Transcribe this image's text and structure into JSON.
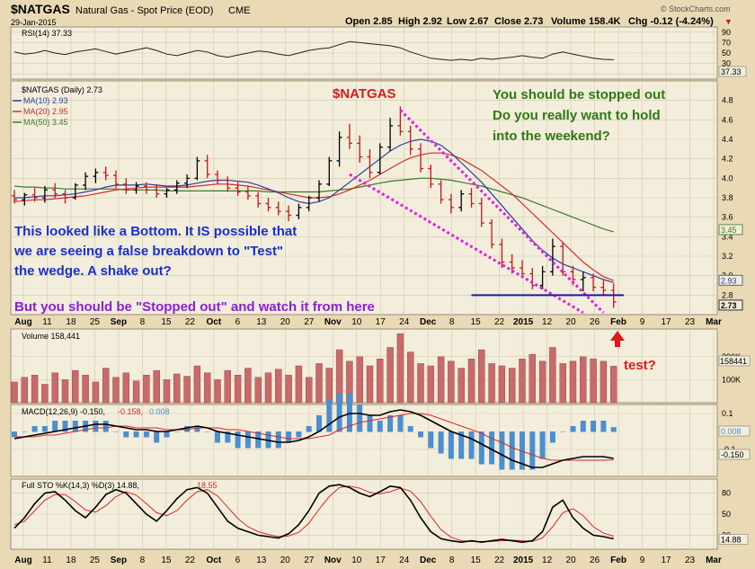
{
  "header": {
    "symbol": "$NATGAS",
    "description": "Natural Gas - Spot Price (EOD)",
    "exchange": "CME",
    "date": "29-Jan-2015",
    "open": "Open 2.85",
    "high": "High 2.92",
    "low": "Low 2.67",
    "close": "Close 2.73",
    "volume": "Volume 158.4K",
    "change": "Chg -0.12 (-4.24%)",
    "change_arrow": "▼",
    "watermark": "© StockCharts.com"
  },
  "legends": {
    "rsi": "RSI(14) 37.33",
    "price_name": "$NATGAS (Daily) 2.73",
    "ma10": "MA(10) 2.93",
    "ma20": "MA(20) 2.95",
    "ma50": "MA(50) 3.45",
    "volume": "Volume 158,441",
    "macd_main": "MACD(12,26,9) -0.150,",
    "macd_signal": "-0.158,",
    "macd_hist": "0.008",
    "sto_main": "Full STO %K(14,3) %D(3) 14.88,",
    "sto_d": "18.55"
  },
  "annotations": {
    "title": "$NATGAS",
    "stopped_1": "You should be stopped out",
    "stopped_2": "Do you really want to hold",
    "stopped_3": "into the weekend?",
    "bottom_1": "This looked like a Bottom.  It IS possible that",
    "bottom_2": "we are seeing a false breakdown to \"Test\"",
    "bottom_3": "the wedge.  A shake out?",
    "watch": "But you should be \"Stopped out\" and watch it from here",
    "test": "test?"
  },
  "colors": {
    "background": "#e9d9b4",
    "panel": "#f3eddc",
    "grid": "#d2c7ad",
    "up_bar": "#000000",
    "down_bar": "#c41818",
    "ma10": "#2b3fa0",
    "ma20": "#d42a2a",
    "ma50": "#3a7a2a",
    "vol_bar": "#c96a6a",
    "macd_hist": "#4b8fcf",
    "wedge": "#e020e0",
    "support": "#1a1aa0",
    "note_blue": "#1a2fc9",
    "note_green": "#2d7a12",
    "note_red": "#e01818",
    "note_purple": "#8a1fd6"
  },
  "chart_data": {
    "type": "candlestick",
    "x_labels": [
      "Aug",
      "11",
      "18",
      "25",
      "Sep",
      "8",
      "15",
      "22",
      "Oct",
      "6",
      "13",
      "20",
      "27",
      "Nov",
      "10",
      "17",
      "24",
      "Dec",
      "8",
      "15",
      "22",
      "2015",
      "12",
      "20",
      "26",
      "Feb",
      "9",
      "17",
      "23",
      "Mar"
    ],
    "panels": {
      "rsi": {
        "ylim": [
          0,
          100
        ],
        "ticks": [
          "90",
          "70",
          "50",
          "30",
          "10"
        ],
        "last": "37.33",
        "values": [
          52,
          48,
          50,
          55,
          50,
          47,
          52,
          55,
          58,
          53,
          48,
          52,
          56,
          60,
          55,
          48,
          45,
          50,
          55,
          52,
          45,
          42,
          46,
          50,
          54,
          52,
          48,
          45,
          50,
          55,
          58,
          60,
          66,
          72,
          70,
          68,
          66,
          64,
          60,
          52,
          46,
          40,
          38,
          36,
          38,
          36,
          40,
          38,
          40,
          42,
          45,
          42,
          40,
          48,
          52,
          48,
          44,
          40,
          38,
          37
        ]
      },
      "price": {
        "ylim": [
          2.6,
          5.0
        ],
        "ticks": [
          "4.8",
          "4.6",
          "4.4",
          "4.2",
          "4.0",
          "3.8",
          "3.6",
          "3.4",
          "3.2",
          "3.0",
          "2.8"
        ],
        "last_labels": [
          "3.45",
          "2.93",
          "2.73"
        ],
        "ohlc": [
          [
            3.82,
            3.88,
            3.74,
            3.78
          ],
          [
            3.78,
            3.85,
            3.72,
            3.83
          ],
          [
            3.83,
            3.9,
            3.76,
            3.8
          ],
          [
            3.8,
            3.92,
            3.75,
            3.88
          ],
          [
            3.88,
            3.95,
            3.8,
            3.84
          ],
          [
            3.84,
            3.88,
            3.74,
            3.8
          ],
          [
            3.8,
            3.95,
            3.78,
            3.93
          ],
          [
            3.93,
            4.06,
            3.88,
            4.02
          ],
          [
            4.02,
            4.1,
            3.95,
            4.06
          ],
          [
            4.06,
            4.12,
            3.98,
            4.03
          ],
          [
            4.03,
            4.08,
            3.9,
            3.94
          ],
          [
            3.94,
            4.0,
            3.84,
            3.88
          ],
          [
            3.88,
            3.96,
            3.84,
            3.92
          ],
          [
            3.92,
            3.96,
            3.84,
            3.88
          ],
          [
            3.88,
            3.94,
            3.8,
            3.84
          ],
          [
            3.84,
            3.9,
            3.8,
            3.88
          ],
          [
            3.88,
            3.98,
            3.84,
            3.95
          ],
          [
            3.95,
            4.04,
            3.9,
            4.0
          ],
          [
            4.0,
            4.22,
            3.98,
            4.18
          ],
          [
            4.18,
            4.24,
            4.0,
            4.04
          ],
          [
            4.04,
            4.08,
            3.94,
            3.98
          ],
          [
            3.98,
            4.02,
            3.86,
            3.9
          ],
          [
            3.9,
            3.96,
            3.82,
            3.86
          ],
          [
            3.86,
            3.92,
            3.78,
            3.82
          ],
          [
            3.82,
            3.86,
            3.7,
            3.74
          ],
          [
            3.74,
            3.8,
            3.66,
            3.7
          ],
          [
            3.7,
            3.76,
            3.62,
            3.66
          ],
          [
            3.66,
            3.72,
            3.56,
            3.62
          ],
          [
            3.62,
            3.74,
            3.58,
            3.7
          ],
          [
            3.7,
            3.82,
            3.66,
            3.8
          ],
          [
            3.8,
            3.98,
            3.76,
            3.94
          ],
          [
            3.94,
            4.22,
            3.92,
            4.18
          ],
          [
            4.18,
            4.48,
            4.12,
            4.42
          ],
          [
            4.42,
            4.56,
            4.3,
            4.36
          ],
          [
            4.36,
            4.44,
            4.16,
            4.22
          ],
          [
            4.22,
            4.3,
            4.0,
            4.06
          ],
          [
            4.06,
            4.36,
            4.04,
            4.32
          ],
          [
            4.32,
            4.62,
            4.28,
            4.54
          ],
          [
            4.54,
            4.74,
            4.44,
            4.48
          ],
          [
            4.48,
            4.54,
            4.24,
            4.3
          ],
          [
            4.3,
            4.36,
            4.06,
            4.1
          ],
          [
            4.1,
            4.14,
            3.9,
            3.94
          ],
          [
            3.94,
            3.98,
            3.74,
            3.78
          ],
          [
            3.78,
            3.84,
            3.64,
            3.7
          ],
          [
            3.7,
            3.88,
            3.66,
            3.84
          ],
          [
            3.84,
            3.9,
            3.7,
            3.74
          ],
          [
            3.74,
            3.8,
            3.5,
            3.54
          ],
          [
            3.54,
            3.58,
            3.28,
            3.32
          ],
          [
            3.32,
            3.38,
            3.08,
            3.14
          ],
          [
            3.14,
            3.22,
            3.02,
            3.08
          ],
          [
            3.08,
            3.16,
            2.98,
            3.02
          ],
          [
            3.02,
            3.08,
            2.86,
            2.9
          ],
          [
            2.9,
            3.1,
            2.86,
            3.04
          ],
          [
            3.04,
            3.38,
            3.0,
            3.3
          ],
          [
            3.3,
            3.34,
            3.0,
            3.04
          ],
          [
            3.04,
            3.1,
            2.9,
            2.96
          ],
          [
            2.96,
            3.04,
            2.84,
            2.98
          ],
          [
            2.98,
            3.02,
            2.84,
            2.88
          ],
          [
            2.88,
            2.96,
            2.8,
            2.85
          ],
          [
            2.85,
            2.92,
            2.67,
            2.73
          ]
        ],
        "ma10": [
          3.8,
          3.8,
          3.81,
          3.82,
          3.82,
          3.83,
          3.84,
          3.86,
          3.88,
          3.91,
          3.93,
          3.93,
          3.93,
          3.94,
          3.93,
          3.92,
          3.92,
          3.93,
          3.95,
          3.97,
          3.98,
          3.98,
          3.97,
          3.96,
          3.93,
          3.89,
          3.85,
          3.8,
          3.76,
          3.74,
          3.76,
          3.8,
          3.88,
          3.96,
          4.04,
          4.12,
          4.2,
          4.28,
          4.34,
          4.38,
          4.4,
          4.38,
          4.34,
          4.26,
          4.16,
          4.06,
          3.96,
          3.84,
          3.72,
          3.6,
          3.48,
          3.36,
          3.26,
          3.18,
          3.12,
          3.08,
          3.04,
          3.0,
          2.96,
          2.93
        ],
        "ma20": [
          3.76,
          3.77,
          3.78,
          3.78,
          3.79,
          3.8,
          3.81,
          3.82,
          3.84,
          3.86,
          3.88,
          3.89,
          3.9,
          3.91,
          3.91,
          3.91,
          3.91,
          3.91,
          3.92,
          3.93,
          3.94,
          3.94,
          3.93,
          3.92,
          3.9,
          3.88,
          3.86,
          3.84,
          3.82,
          3.8,
          3.8,
          3.81,
          3.84,
          3.88,
          3.93,
          3.98,
          4.04,
          4.1,
          4.16,
          4.21,
          4.24,
          4.26,
          4.26,
          4.24,
          4.2,
          4.14,
          4.08,
          4.0,
          3.92,
          3.84,
          3.74,
          3.64,
          3.54,
          3.44,
          3.34,
          3.24,
          3.14,
          3.06,
          2.99,
          2.95
        ],
        "ma50": [
          3.92,
          3.91,
          3.91,
          3.9,
          3.9,
          3.89,
          3.89,
          3.89,
          3.89,
          3.89,
          3.89,
          3.88,
          3.88,
          3.88,
          3.88,
          3.87,
          3.87,
          3.87,
          3.87,
          3.87,
          3.87,
          3.87,
          3.87,
          3.87,
          3.87,
          3.86,
          3.86,
          3.86,
          3.86,
          3.86,
          3.86,
          3.87,
          3.88,
          3.89,
          3.91,
          3.93,
          3.95,
          3.97,
          3.98,
          3.99,
          4.0,
          4.0,
          3.99,
          3.98,
          3.96,
          3.94,
          3.92,
          3.89,
          3.86,
          3.83,
          3.8,
          3.76,
          3.72,
          3.68,
          3.64,
          3.6,
          3.56,
          3.52,
          3.48,
          3.45
        ],
        "wedge_upper": [
          [
            38,
            4.7
          ],
          [
            58,
            2.62
          ]
        ],
        "wedge_lower": [
          [
            33,
            4.04
          ],
          [
            56,
            2.62
          ]
        ],
        "support": [
          [
            45,
            2.8
          ],
          [
            60,
            2.8
          ]
        ]
      },
      "volume": {
        "ylim": [
          0,
          320000
        ],
        "ticks": [
          "200K",
          "100K"
        ],
        "last": "158441",
        "values": [
          90000,
          110000,
          120000,
          80000,
          130000,
          100000,
          140000,
          120000,
          90000,
          150000,
          110000,
          130000,
          95000,
          120000,
          140000,
          100000,
          125000,
          115000,
          160000,
          130000,
          100000,
          140000,
          120000,
          150000,
          110000,
          130000,
          145000,
          120000,
          160000,
          110000,
          170000,
          150000,
          230000,
          180000,
          200000,
          160000,
          190000,
          240000,
          300000,
          220000,
          170000,
          160000,
          200000,
          180000,
          150000,
          190000,
          230000,
          170000,
          160000,
          150000,
          190000,
          210000,
          180000,
          240000,
          170000,
          180000,
          200000,
          190000,
          180000,
          158441
        ]
      },
      "macd": {
        "ylim": [
          -0.25,
          0.15
        ],
        "ticks": [
          "0.1",
          "-0.1"
        ],
        "last_labels": [
          "0.008",
          "-0.150"
        ],
        "macd": [
          -0.04,
          -0.03,
          -0.02,
          -0.01,
          0.0,
          0.01,
          0.02,
          0.03,
          0.04,
          0.04,
          0.03,
          0.02,
          0.01,
          0.01,
          0.0,
          0.0,
          0.01,
          0.02,
          0.03,
          0.02,
          0.0,
          -0.01,
          -0.02,
          -0.03,
          -0.04,
          -0.05,
          -0.06,
          -0.06,
          -0.05,
          -0.03,
          0.0,
          0.04,
          0.08,
          0.1,
          0.1,
          0.09,
          0.09,
          0.11,
          0.12,
          0.11,
          0.09,
          0.06,
          0.03,
          0.0,
          -0.02,
          -0.04,
          -0.07,
          -0.1,
          -0.13,
          -0.16,
          -0.18,
          -0.2,
          -0.2,
          -0.18,
          -0.16,
          -0.15,
          -0.14,
          -0.14,
          -0.14,
          -0.15
        ],
        "signal": [
          -0.03,
          -0.03,
          -0.03,
          -0.02,
          -0.02,
          -0.01,
          0.0,
          0.01,
          0.02,
          0.02,
          0.03,
          0.03,
          0.02,
          0.02,
          0.02,
          0.01,
          0.01,
          0.01,
          0.02,
          0.02,
          0.02,
          0.01,
          0.01,
          0.0,
          -0.01,
          -0.02,
          -0.03,
          -0.04,
          -0.04,
          -0.04,
          -0.03,
          -0.02,
          0.01,
          0.03,
          0.05,
          0.06,
          0.07,
          0.08,
          0.09,
          0.1,
          0.1,
          0.09,
          0.07,
          0.05,
          0.03,
          0.01,
          -0.01,
          -0.04,
          -0.06,
          -0.09,
          -0.11,
          -0.13,
          -0.15,
          -0.16,
          -0.16,
          -0.16,
          -0.16,
          -0.16,
          -0.16,
          -0.158
        ]
      },
      "stochastic": {
        "ylim": [
          0,
          100
        ],
        "ticks": [
          "80",
          "50",
          "20"
        ],
        "last_labels": [
          "14.88"
        ],
        "k": [
          30,
          45,
          65,
          80,
          82,
          70,
          55,
          45,
          60,
          78,
          85,
          80,
          65,
          50,
          40,
          55,
          72,
          85,
          88,
          80,
          60,
          40,
          30,
          25,
          20,
          18,
          16,
          22,
          35,
          55,
          80,
          90,
          92,
          88,
          80,
          75,
          82,
          90,
          88,
          70,
          45,
          25,
          15,
          12,
          10,
          12,
          10,
          12,
          14,
          12,
          10,
          12,
          25,
          60,
          70,
          45,
          30,
          20,
          18,
          14.88
        ],
        "d": [
          35,
          40,
          55,
          70,
          78,
          78,
          68,
          56,
          53,
          62,
          75,
          82,
          77,
          65,
          52,
          48,
          55,
          70,
          82,
          85,
          76,
          60,
          44,
          32,
          25,
          21,
          18,
          19,
          24,
          37,
          57,
          75,
          88,
          90,
          87,
          81,
          79,
          82,
          87,
          83,
          68,
          47,
          28,
          17,
          12,
          11,
          11,
          11,
          12,
          13,
          12,
          11,
          16,
          32,
          52,
          58,
          48,
          32,
          23,
          18.55
        ]
      }
    }
  }
}
